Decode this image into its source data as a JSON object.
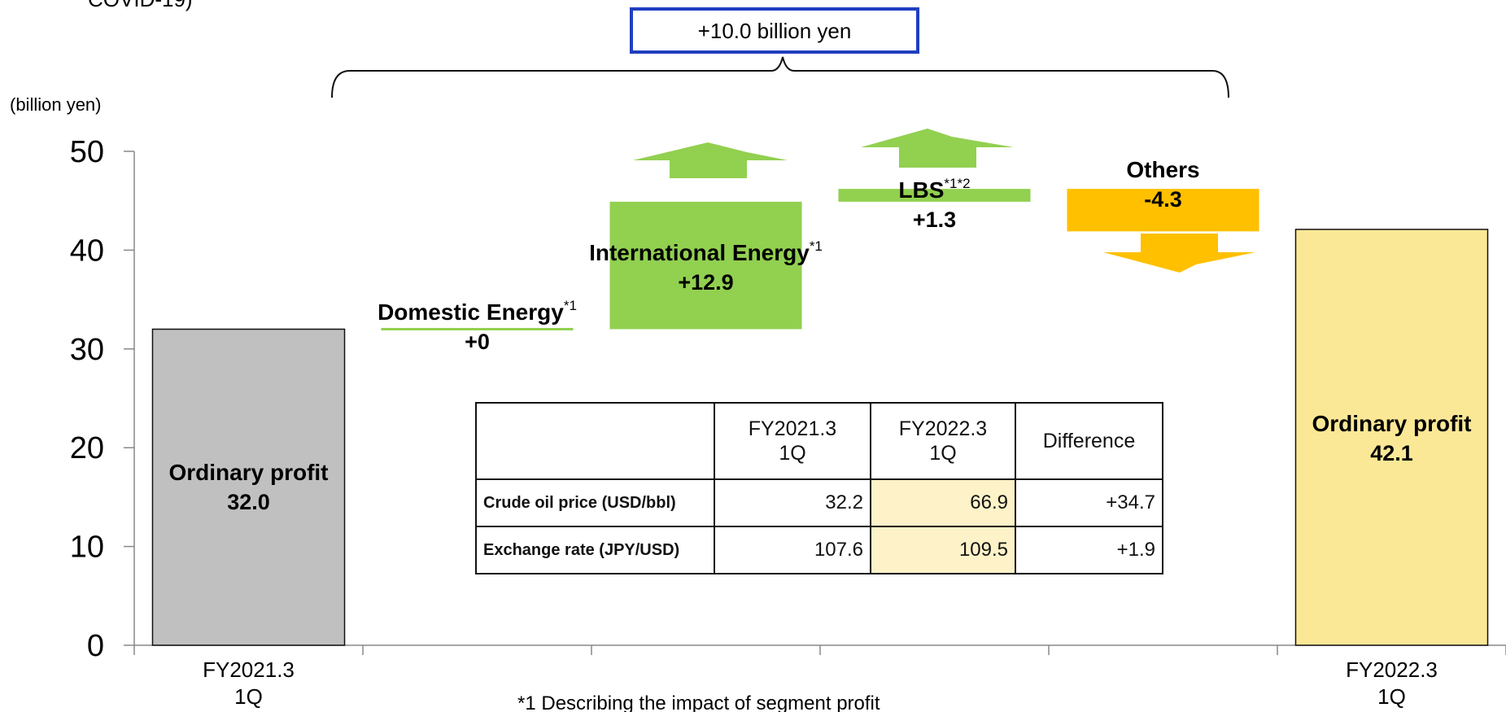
{
  "top_left_text": "COVID-19)",
  "total_change_label": "+10.0 billion yen",
  "chart_data": {
    "type": "bar",
    "title": "",
    "ylabel": "(billion yen)",
    "ylim": [
      0,
      50
    ],
    "yticks": [
      0,
      10,
      20,
      30,
      40,
      50
    ],
    "x_categories": [
      "FY2021.3\n1Q",
      "",
      "",
      "",
      "",
      "FY2022.3\n1Q"
    ],
    "bars": [
      {
        "name": "Ordinary profit",
        "value_label": "32.0",
        "base": 0,
        "value": 32.0,
        "color": "#c0c0c0"
      },
      {
        "name": "Domestic Energy",
        "marker": "*1",
        "value_label": "+0",
        "base": 32.0,
        "value": 0,
        "color": "#92d050"
      },
      {
        "name": "International Energy",
        "marker": "*1",
        "value_label": "+12.9",
        "base": 32.0,
        "value": 12.9,
        "color": "#92d050"
      },
      {
        "name": "LBS",
        "marker": "*1*2",
        "value_label": "+1.3",
        "base": 44.9,
        "value": 1.3,
        "color": "#92d050"
      },
      {
        "name": "Others",
        "marker": "",
        "value_label": "-4.3",
        "base": 46.2,
        "value": -4.3,
        "color": "#ffc000"
      },
      {
        "name": "Ordinary profit",
        "value_label": "42.1",
        "base": 0,
        "value": 42.1,
        "color": "#fbe896"
      }
    ]
  },
  "table": {
    "headers": [
      "",
      "FY2021.3\n1Q",
      "FY2022.3\n1Q",
      "Difference"
    ],
    "rows": [
      {
        "label": "Crude oil price (USD/bbl)",
        "prev": "32.2",
        "curr": "66.9",
        "diff": "+34.7"
      },
      {
        "label": "Exchange rate (JPY/USD)",
        "prev": "107.6",
        "curr": "109.5",
        "diff": "+1.9"
      }
    ]
  },
  "footnote": "*1  Describing the impact of segment profit",
  "colors": {
    "increase": "#92d050",
    "decrease": "#ffc000",
    "start_bar": "#c0c0c0",
    "end_bar": "#fbe896",
    "callout_border": "#1f3fbf"
  }
}
